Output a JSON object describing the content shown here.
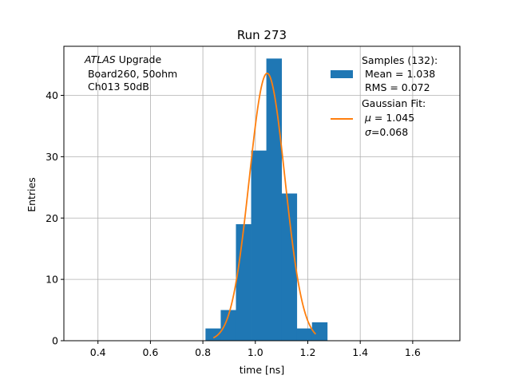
{
  "chart_data": {
    "type": "bar",
    "title": "Run 273",
    "xlabel": "time [ns]",
    "ylabel": "Entries",
    "xlim": [
      0.27,
      1.78
    ],
    "ylim": [
      0,
      48
    ],
    "xticks": [
      0.4,
      0.6,
      0.8,
      1.0,
      1.2,
      1.4,
      1.6
    ],
    "xtick_labels": [
      "0.4",
      "0.6",
      "0.8",
      "1.0",
      "1.2",
      "1.4",
      "1.6"
    ],
    "yticks": [
      0,
      10,
      20,
      30,
      40
    ],
    "ytick_labels": [
      "0",
      "10",
      "20",
      "30",
      "40"
    ],
    "grid": true,
    "histogram": {
      "name": "Samples",
      "color": "#1f77b4",
      "bin_edges": [
        0.81,
        0.868,
        0.926,
        0.984,
        1.042,
        1.1,
        1.158,
        1.216,
        1.274
      ],
      "counts": [
        2,
        5,
        19,
        31,
        46,
        24,
        2,
        3
      ]
    },
    "fit": {
      "name": "Gaussian Fit",
      "color": "#ff7f0e",
      "mu": 1.045,
      "sigma": 0.068,
      "amplitude": 43.6,
      "x_range": [
        0.84,
        1.23
      ]
    },
    "annotation": {
      "italic": "ATLAS",
      "line1_rest": " Upgrade",
      "line2": " Board260, 50ohm",
      "line3": " Ch013 50dB"
    },
    "legend": {
      "position": "upper right",
      "samples_line1": "Samples (132):",
      "samples_line2": " Mean = 1.038",
      "samples_line3": " RMS = 0.072",
      "fit_line1": "Gaussian Fit:",
      "fit_line2_symbol": "μ",
      "fit_line2_rest": " = 1.045",
      "fit_line3_symbol": "σ",
      "fit_line3_rest": "=0.068"
    }
  }
}
